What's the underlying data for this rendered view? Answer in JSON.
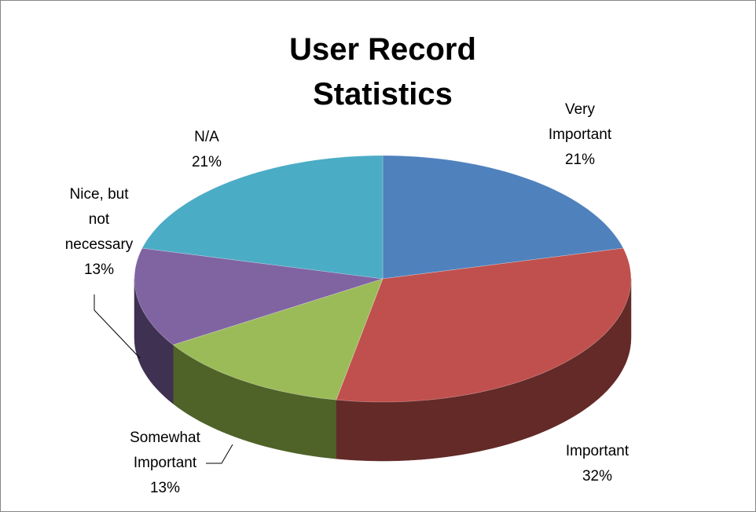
{
  "chart_data": {
    "type": "pie",
    "title": "User Record Statistics",
    "categories": [
      "Very Important",
      "Important",
      "Somewhat Important",
      "Nice, but not necessary",
      "N/A"
    ],
    "values": [
      21,
      32,
      13,
      13,
      21
    ],
    "value_labels": [
      "21%",
      "32%",
      "13%",
      "13%",
      "21%"
    ],
    "colors": [
      "#4f81bd",
      "#c0504d",
      "#9bbb59",
      "#8064a2",
      "#4bacc6"
    ],
    "side_colors": [
      "#2c4d75",
      "#632a28",
      "#4f6228",
      "#3f3151",
      "#2b6f80"
    ]
  }
}
